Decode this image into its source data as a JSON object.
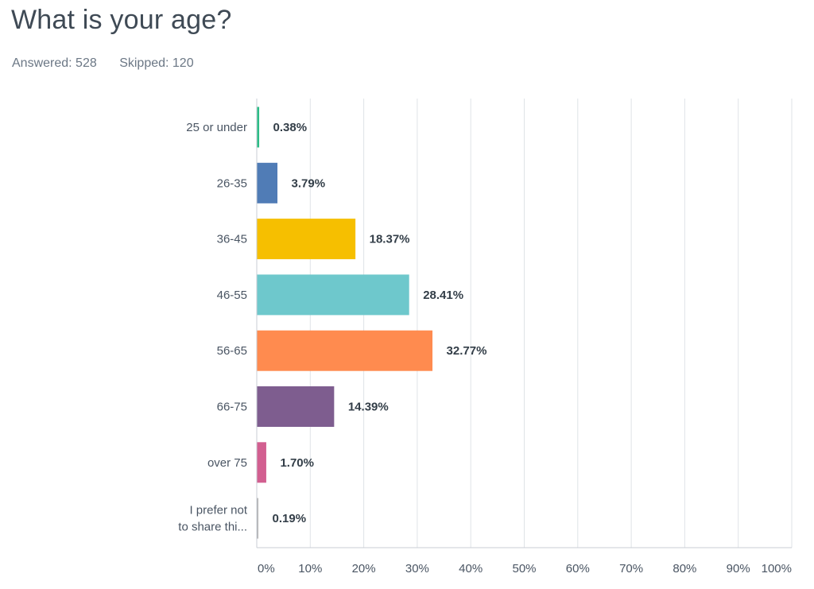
{
  "question": {
    "title": "What is your age?",
    "answered_label": "Answered: 528",
    "skipped_label": "Skipped: 120"
  },
  "colors": {
    "gridline": "#dfe3e7",
    "axis": "#c9ced4"
  },
  "chart_data": {
    "type": "bar",
    "orientation": "horizontal",
    "categories": [
      [
        "25 or under"
      ],
      [
        "26-35"
      ],
      [
        "36-45"
      ],
      [
        "46-55"
      ],
      [
        "56-65"
      ],
      [
        "66-75"
      ],
      [
        "over 75"
      ],
      [
        "I prefer not",
        "to share thi..."
      ]
    ],
    "values": [
      0.38,
      3.79,
      18.37,
      28.41,
      32.77,
      14.39,
      1.7,
      0.19
    ],
    "value_labels": [
      "0.38%",
      "3.79%",
      "18.37%",
      "28.41%",
      "32.77%",
      "14.39%",
      "1.70%",
      "0.19%"
    ],
    "colors": [
      "#2bbc86",
      "#507cb6",
      "#f6bf00",
      "#6ec8cc",
      "#ff8b4f",
      "#7e5d8f",
      "#d25f90",
      "#b3b3b3"
    ],
    "xlim": [
      0,
      100
    ],
    "ticks": [
      0,
      10,
      20,
      30,
      40,
      50,
      60,
      70,
      80,
      90,
      100
    ],
    "tick_labels": [
      "0%",
      "10%",
      "20%",
      "30%",
      "40%",
      "50%",
      "60%",
      "70%",
      "80%",
      "90%",
      "100%"
    ],
    "grid": true
  }
}
